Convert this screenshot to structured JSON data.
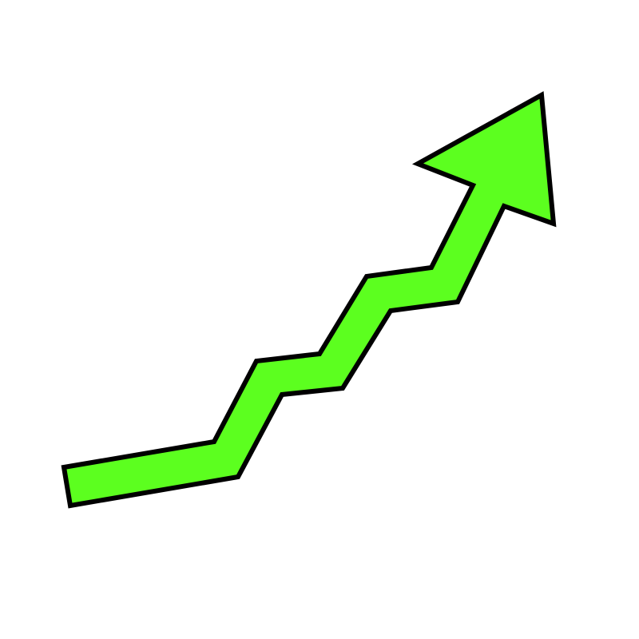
{
  "graphic": {
    "icon": "zigzag-up-arrow-icon",
    "fill_color": "#5CFF1F",
    "outline_color": "#000000",
    "background_color": "#FFFFFF"
  }
}
